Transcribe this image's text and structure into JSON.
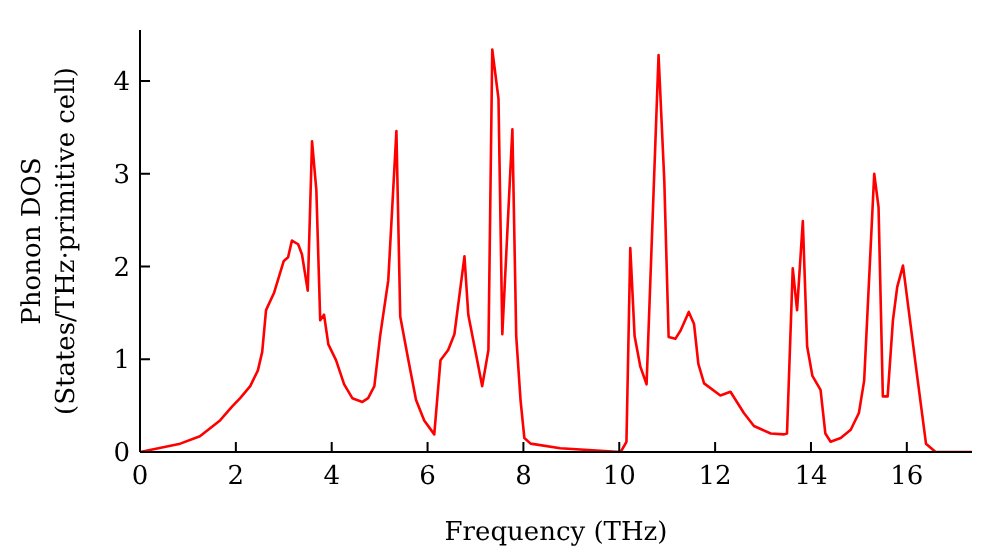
{
  "chart_data": {
    "type": "line",
    "xlabel": "Frequency (THz)",
    "ylabel": "Phonon DOS\n(States/THz·primitive cell)",
    "x": [
      0,
      0.84,
      1.25,
      1.67,
      1.92,
      2.09,
      2.3,
      2.46,
      2.55,
      2.63,
      2.8,
      3.0,
      3.09,
      3.17,
      3.3,
      3.38,
      3.5,
      3.59,
      3.68,
      3.76,
      3.84,
      3.93,
      4.09,
      4.26,
      4.43,
      4.64,
      4.76,
      4.89,
      5.01,
      5.18,
      5.35,
      5.43,
      5.6,
      5.76,
      5.93,
      6.14,
      6.27,
      6.43,
      6.56,
      6.77,
      6.85,
      7.02,
      7.14,
      7.27,
      7.35,
      7.48,
      7.56,
      7.77,
      7.85,
      7.94,
      8.02,
      8.15,
      8.77,
      10.03,
      10.15,
      10.23,
      10.32,
      10.44,
      10.57,
      10.82,
      10.94,
      11.03,
      11.17,
      11.28,
      11.45,
      11.56,
      11.65,
      11.77,
      12.11,
      12.32,
      12.6,
      12.81,
      13.16,
      13.44,
      13.5,
      13.62,
      13.71,
      13.83,
      13.92,
      14.03,
      14.2,
      14.3,
      14.41,
      14.62,
      14.83,
      15.0,
      15.11,
      15.32,
      15.41,
      15.5,
      15.6,
      15.71,
      15.8,
      15.92,
      16.19,
      16.4,
      16.6,
      17.36
    ],
    "series": [
      {
        "color": "#ff0000",
        "values": [
          0,
          0.09,
          0.17,
          0.34,
          0.49,
          0.58,
          0.71,
          0.88,
          1.08,
          1.53,
          1.72,
          2.06,
          2.1,
          2.28,
          2.24,
          2.13,
          1.74,
          3.35,
          2.82,
          1.42,
          1.48,
          1.16,
          0.99,
          0.73,
          0.58,
          0.54,
          0.58,
          0.71,
          1.25,
          1.85,
          3.46,
          1.46,
          0.99,
          0.56,
          0.34,
          0.19,
          0.99,
          1.1,
          1.27,
          2.11,
          1.48,
          1.03,
          0.71,
          1.1,
          4.34,
          3.81,
          1.27,
          3.48,
          1.25,
          0.56,
          0.15,
          0.09,
          0.04,
          0,
          0.11,
          2.2,
          1.25,
          0.92,
          0.73,
          4.28,
          2.92,
          1.24,
          1.22,
          1.31,
          1.51,
          1.38,
          0.95,
          0.74,
          0.61,
          0.65,
          0.42,
          0.28,
          0.2,
          0.19,
          0.2,
          1.98,
          1.53,
          2.49,
          1.14,
          0.82,
          0.67,
          0.2,
          0.11,
          0.15,
          0.24,
          0.42,
          0.77,
          3.0,
          2.64,
          0.6,
          0.6,
          1.42,
          1.78,
          2.01,
          0.92,
          0.09,
          0,
          0
        ]
      }
    ],
    "xlim": [
      0,
      17.36
    ],
    "xticks": [
      0,
      2,
      4,
      6,
      8,
      10,
      12,
      14,
      16
    ],
    "ylim": [
      0,
      4.55
    ],
    "yticks": [
      0,
      1,
      2,
      3,
      4
    ],
    "grid": false,
    "legend": false,
    "marker": "none",
    "line_style": "solid"
  }
}
